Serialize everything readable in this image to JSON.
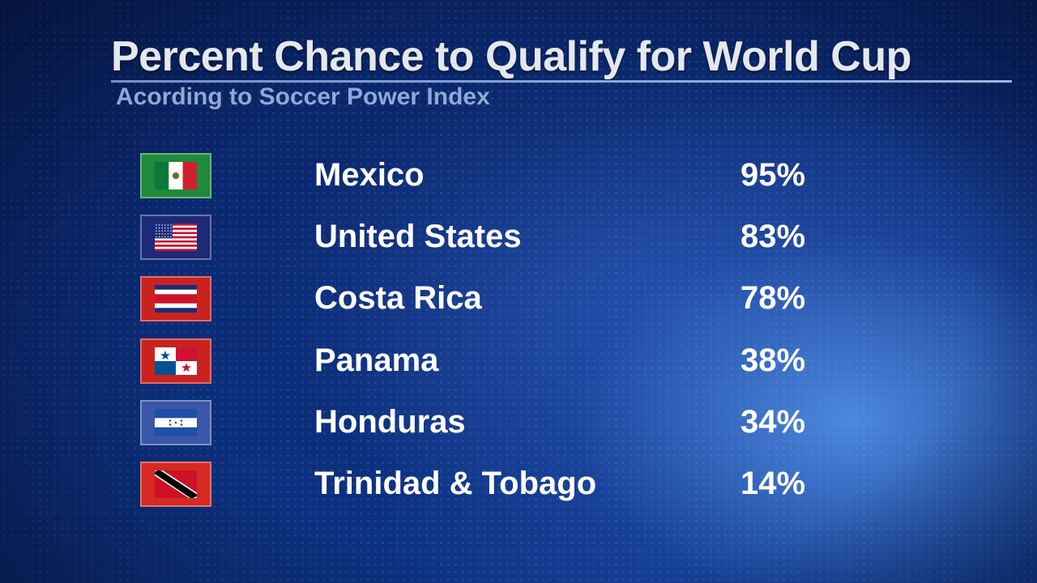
{
  "chart_data": {
    "type": "table",
    "title": "Percent Chance to Qualify for World Cup",
    "subtitle": "Acording to Soccer Power Index",
    "rows": [
      {
        "country": "Mexico",
        "value": "95%",
        "percent": 95,
        "flag_icon": "mexico-flag-icon",
        "box_color": "#1e8a3a"
      },
      {
        "country": "United States",
        "value": "83%",
        "percent": 83,
        "flag_icon": "usa-flag-icon",
        "box_color": "#1c2a78"
      },
      {
        "country": "Costa Rica",
        "value": "78%",
        "percent": 78,
        "flag_icon": "costa-rica-flag-icon",
        "box_color": "#c8231e"
      },
      {
        "country": "Panama",
        "value": "38%",
        "percent": 38,
        "flag_icon": "panama-flag-icon",
        "box_color": "#c8231e"
      },
      {
        "country": "Honduras",
        "value": "34%",
        "percent": 34,
        "flag_icon": "honduras-flag-icon",
        "box_color": "#3b56a8"
      },
      {
        "country": "Trinidad & Tobago",
        "value": "14%",
        "percent": 14,
        "flag_icon": "trinidad-tobago-flag-icon",
        "box_color": "#d42a22"
      }
    ]
  }
}
